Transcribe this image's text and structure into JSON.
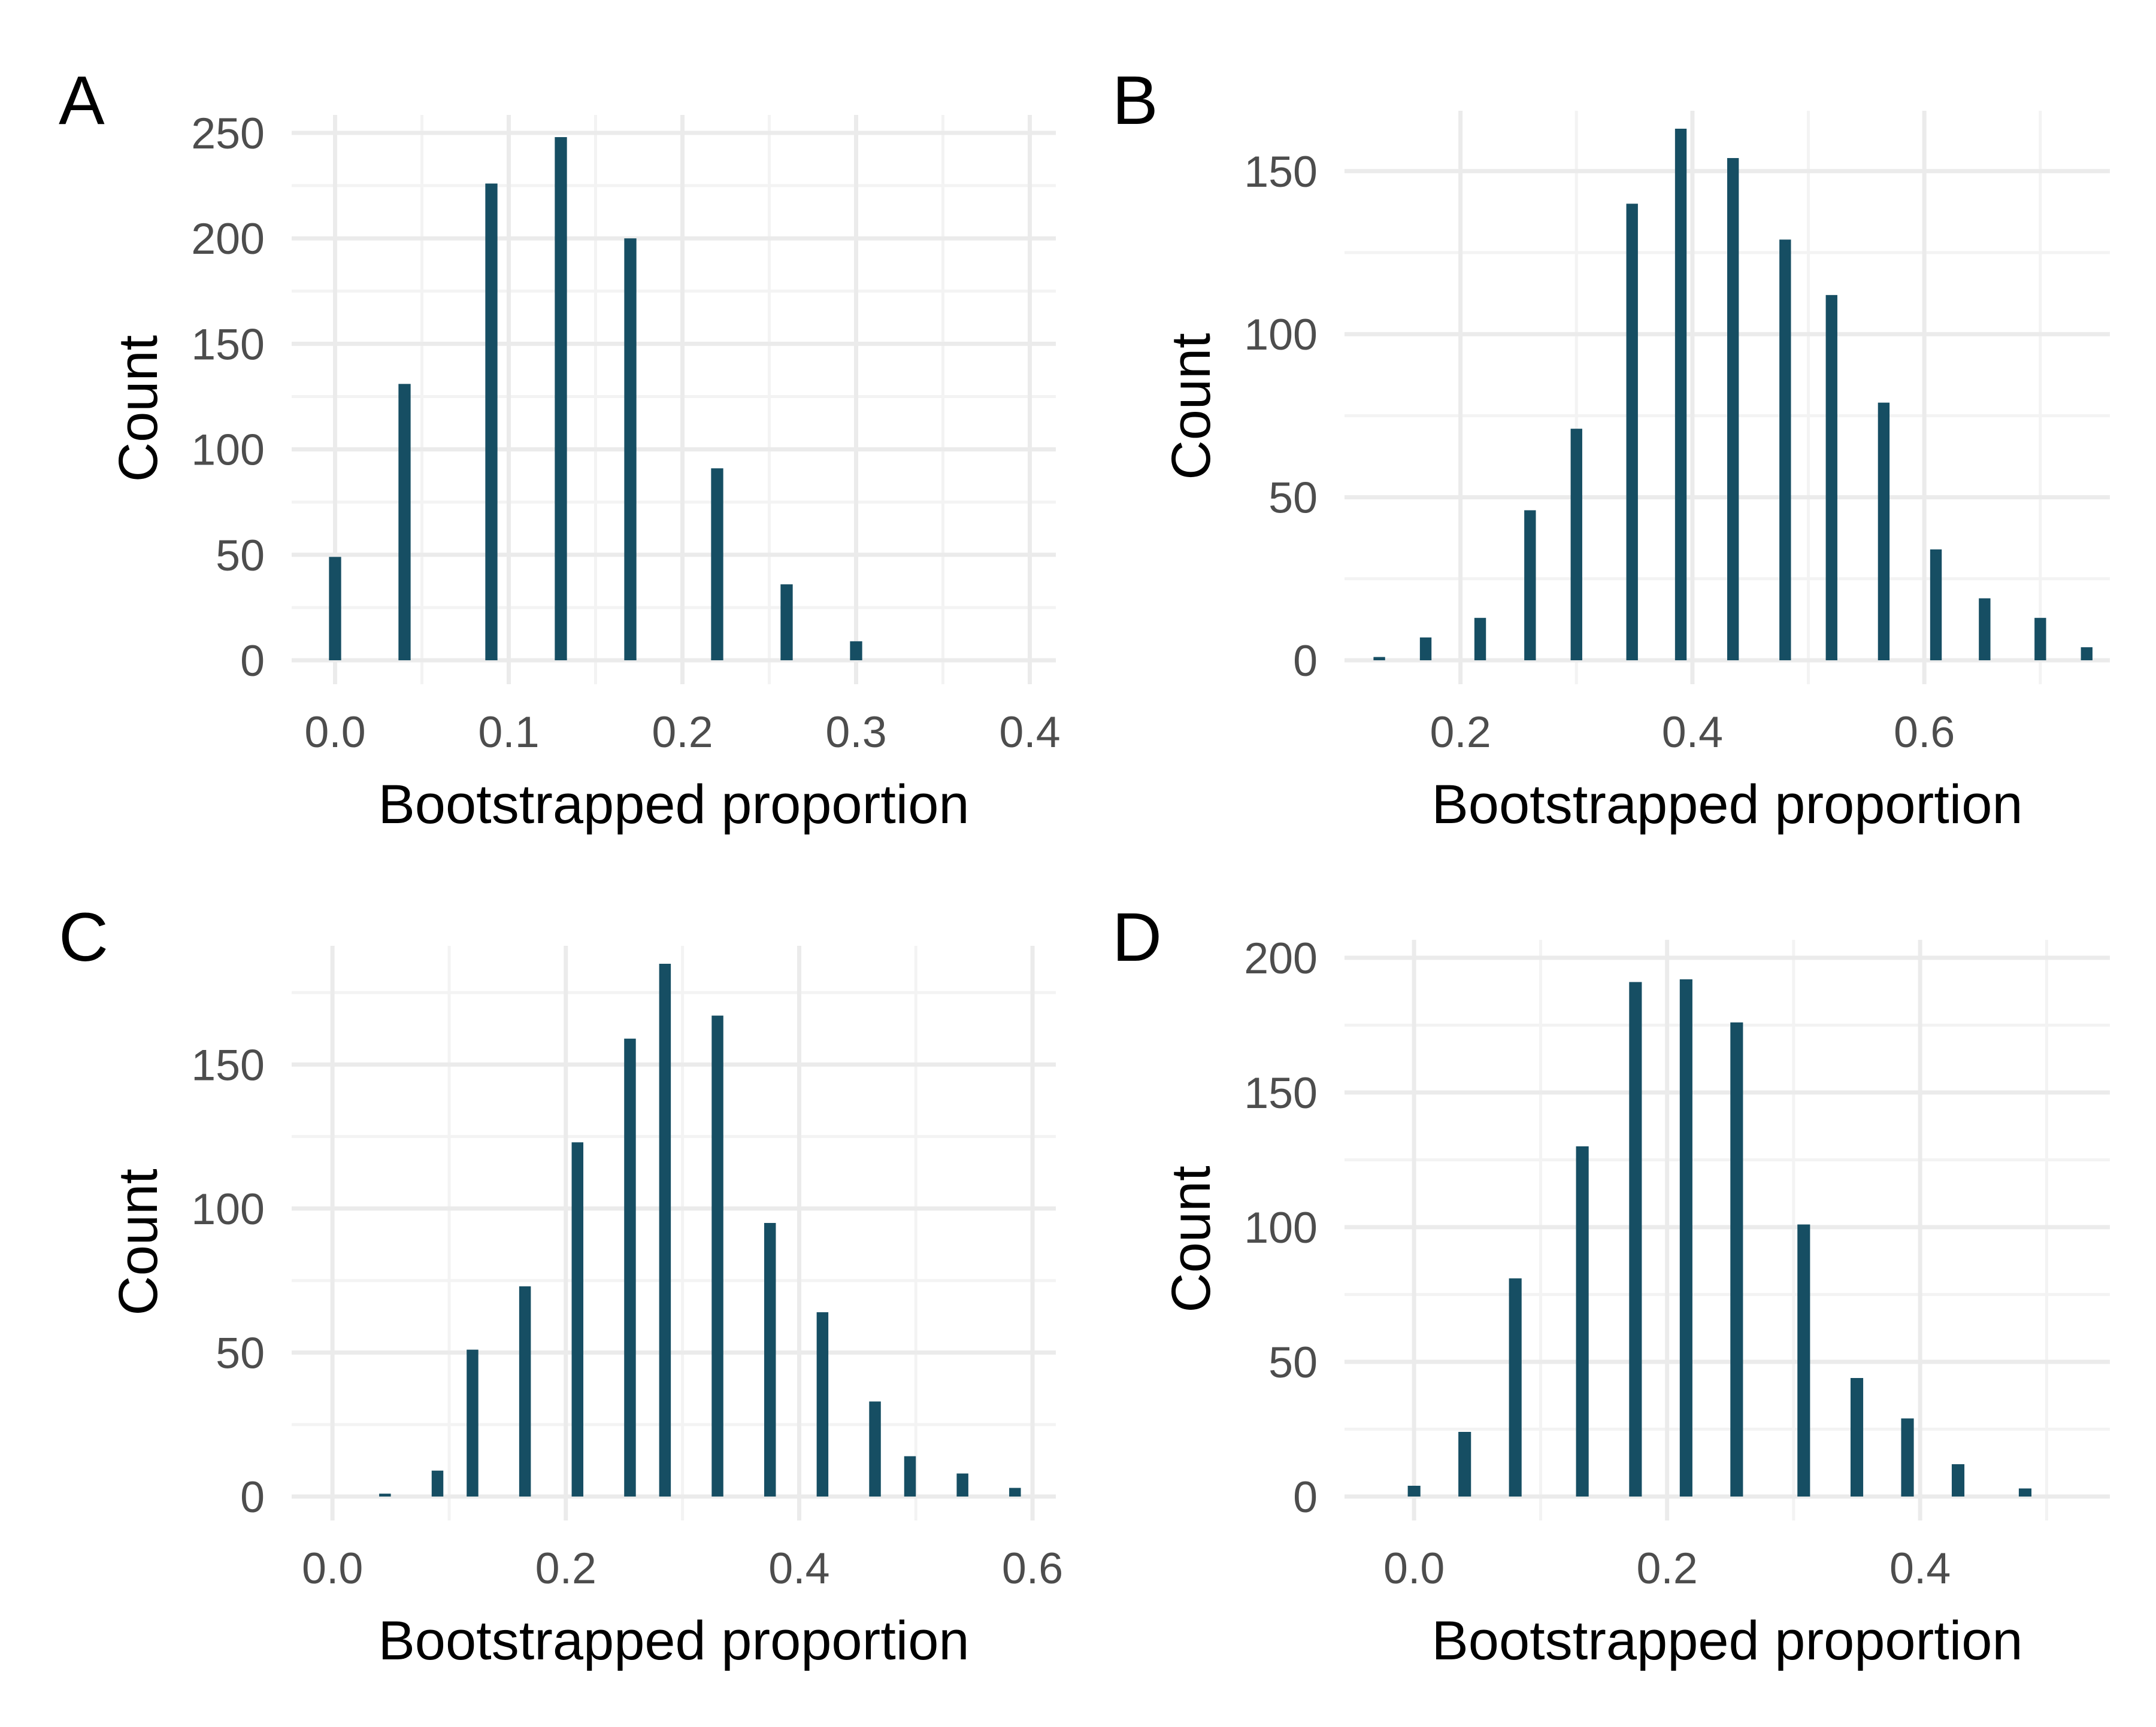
{
  "style": {
    "bar_color": "#164e63",
    "grid_major_color": "#ebebeb",
    "grid_minor_color": "#f3f3f3",
    "tick_label_color": "#4d4d4d",
    "text_color": "#000000"
  },
  "chart_data": [
    {
      "panel_label": "A",
      "type": "bar",
      "xlabel": "Bootstrapped proportion",
      "ylabel": "Count",
      "xlim": [
        -0.025,
        0.415
      ],
      "ylim": [
        0,
        250
      ],
      "x_ticks": [
        0.0,
        0.1,
        0.2,
        0.3,
        0.4
      ],
      "x_tick_labels": [
        "0.0",
        "0.1",
        "0.2",
        "0.3",
        "0.4"
      ],
      "y_ticks": [
        0,
        50,
        100,
        150,
        200,
        250
      ],
      "y_tick_labels": [
        "0",
        "50",
        "100",
        "150",
        "200",
        "250"
      ],
      "bar_width": 0.007,
      "grid": true,
      "x": [
        0.0,
        0.04,
        0.09,
        0.13,
        0.17,
        0.22,
        0.26,
        0.3
      ],
      "values": [
        49,
        131,
        226,
        248,
        200,
        91,
        36,
        9
      ]
    },
    {
      "panel_label": "B",
      "type": "bar",
      "xlabel": "Bootstrapped proportion",
      "ylabel": "Count",
      "xlim": [
        0.1,
        0.76
      ],
      "ylim": [
        0,
        163
      ],
      "x_ticks": [
        0.2,
        0.4,
        0.6
      ],
      "x_tick_labels": [
        "0.2",
        "0.4",
        "0.6"
      ],
      "y_ticks": [
        0,
        50,
        100,
        150
      ],
      "y_tick_labels": [
        "0",
        "50",
        "100",
        "150"
      ],
      "bar_width": 0.01,
      "grid": true,
      "x": [
        0.13,
        0.17,
        0.217,
        0.26,
        0.3,
        0.348,
        0.39,
        0.435,
        0.48,
        0.52,
        0.565,
        0.61,
        0.652,
        0.7,
        0.74
      ],
      "values": [
        1,
        7,
        13,
        46,
        71,
        140,
        163,
        154,
        129,
        112,
        79,
        34,
        19,
        13,
        4
      ]
    },
    {
      "panel_label": "C",
      "type": "bar",
      "xlabel": "Bootstrapped proportion",
      "ylabel": "Count",
      "xlim": [
        -0.035,
        0.62
      ],
      "ylim": [
        0,
        185
      ],
      "x_ticks": [
        0.0,
        0.2,
        0.4,
        0.6
      ],
      "x_tick_labels": [
        "0.0",
        "0.2",
        "0.4",
        "0.6"
      ],
      "y_ticks": [
        0,
        50,
        100,
        150
      ],
      "y_tick_labels": [
        "0",
        "50",
        "100",
        "150"
      ],
      "bar_width": 0.01,
      "grid": true,
      "x": [
        0.045,
        0.09,
        0.12,
        0.165,
        0.21,
        0.255,
        0.285,
        0.33,
        0.375,
        0.42,
        0.465,
        0.495,
        0.54,
        0.585
      ],
      "values": [
        1,
        9,
        51,
        73,
        123,
        159,
        185,
        167,
        95,
        64,
        33,
        14,
        8,
        3
      ]
    },
    {
      "panel_label": "D",
      "type": "bar",
      "xlabel": "Bootstrapped proportion",
      "ylabel": "Count",
      "xlim": [
        -0.055,
        0.55
      ],
      "ylim": [
        0,
        200
      ],
      "x_ticks": [
        0.0,
        0.2,
        0.4
      ],
      "x_tick_labels": [
        "0.0",
        "0.2",
        "0.4"
      ],
      "y_ticks": [
        0,
        50,
        100,
        150,
        200
      ],
      "y_tick_labels": [
        "0",
        "50",
        "100",
        "150",
        "200"
      ],
      "bar_width": 0.01,
      "grid": true,
      "x": [
        0.0,
        0.04,
        0.08,
        0.133,
        0.175,
        0.215,
        0.255,
        0.308,
        0.35,
        0.39,
        0.43,
        0.483
      ],
      "values": [
        4,
        24,
        81,
        130,
        191,
        192,
        176,
        101,
        44,
        29,
        12,
        3
      ]
    }
  ]
}
